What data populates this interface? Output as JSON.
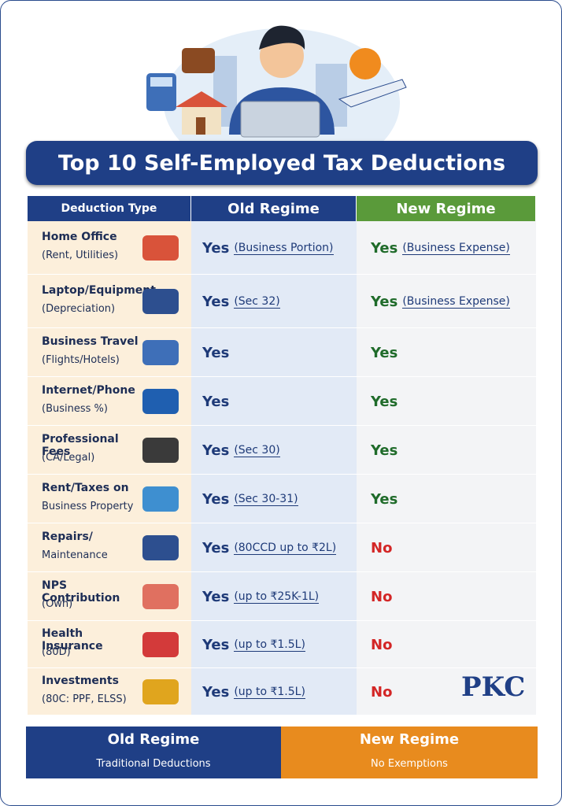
{
  "header": {
    "title": "Top 10 Self-Employed Tax Deductions"
  },
  "table": {
    "columns": [
      "Deduction Type",
      "Old Regime",
      "New Regime"
    ],
    "rows": [
      {
        "type": "Home Office",
        "detail": "(Rent, Utilities)",
        "old": {
          "answer": "Yes",
          "note": "(Business Portion)"
        },
        "new": {
          "answer": "Yes",
          "note": "(Business Expense)"
        }
      },
      {
        "type": "Laptop/Equipment",
        "detail": "(Depreciation)",
        "old": {
          "answer": "Yes",
          "note": "(Sec 32)"
        },
        "new": {
          "answer": "Yes",
          "note": "(Business Expense)"
        }
      },
      {
        "type": "Business Travel",
        "detail": "(Flights/Hotels)",
        "old": {
          "answer": "Yes"
        },
        "new": {
          "answer": "Yes"
        }
      },
      {
        "type": "Internet/Phone",
        "detail": "(Business %)",
        "old": {
          "answer": "Yes"
        },
        "new": {
          "answer": "Yes"
        }
      },
      {
        "type": "Professional Fees",
        "detail": "(CA/Legal)",
        "old": {
          "answer": "Yes",
          "note": "(Sec 30)"
        },
        "new": {
          "answer": "Yes"
        }
      },
      {
        "type": "Rent/Taxes on",
        "detail": "Business Property",
        "old": {
          "answer": "Yes",
          "note": "(Sec 30-31)"
        },
        "new": {
          "answer": "Yes"
        }
      },
      {
        "type": "Repairs/",
        "detail": "Maintenance",
        "old": {
          "answer": "Yes",
          "note": "(80CCD up to ₹2L)"
        },
        "new": {
          "answer": "No"
        }
      },
      {
        "type": "NPS Contribution",
        "detail": "(Own)",
        "old": {
          "answer": "Yes",
          "note": "(up to ₹25K-1L)"
        },
        "new": {
          "answer": "No"
        }
      },
      {
        "type": "Health Insurance",
        "detail": "(80D)",
        "old": {
          "answer": "Yes",
          "note": "(up to ₹1.5L)"
        },
        "new": {
          "answer": "No"
        }
      },
      {
        "type": "Investments",
        "detail": "(80C: PPF, ELSS)",
        "old": {
          "answer": "Yes",
          "note": "(up to ₹1.5L)"
        },
        "new": {
          "answer": "No"
        }
      }
    ]
  },
  "logo": "PKC",
  "footer": {
    "left": {
      "title": "Old Regime",
      "subtitle": "Traditional Deductions"
    },
    "right": {
      "title": "New Regime",
      "subtitle": "No Exemptions"
    }
  }
}
